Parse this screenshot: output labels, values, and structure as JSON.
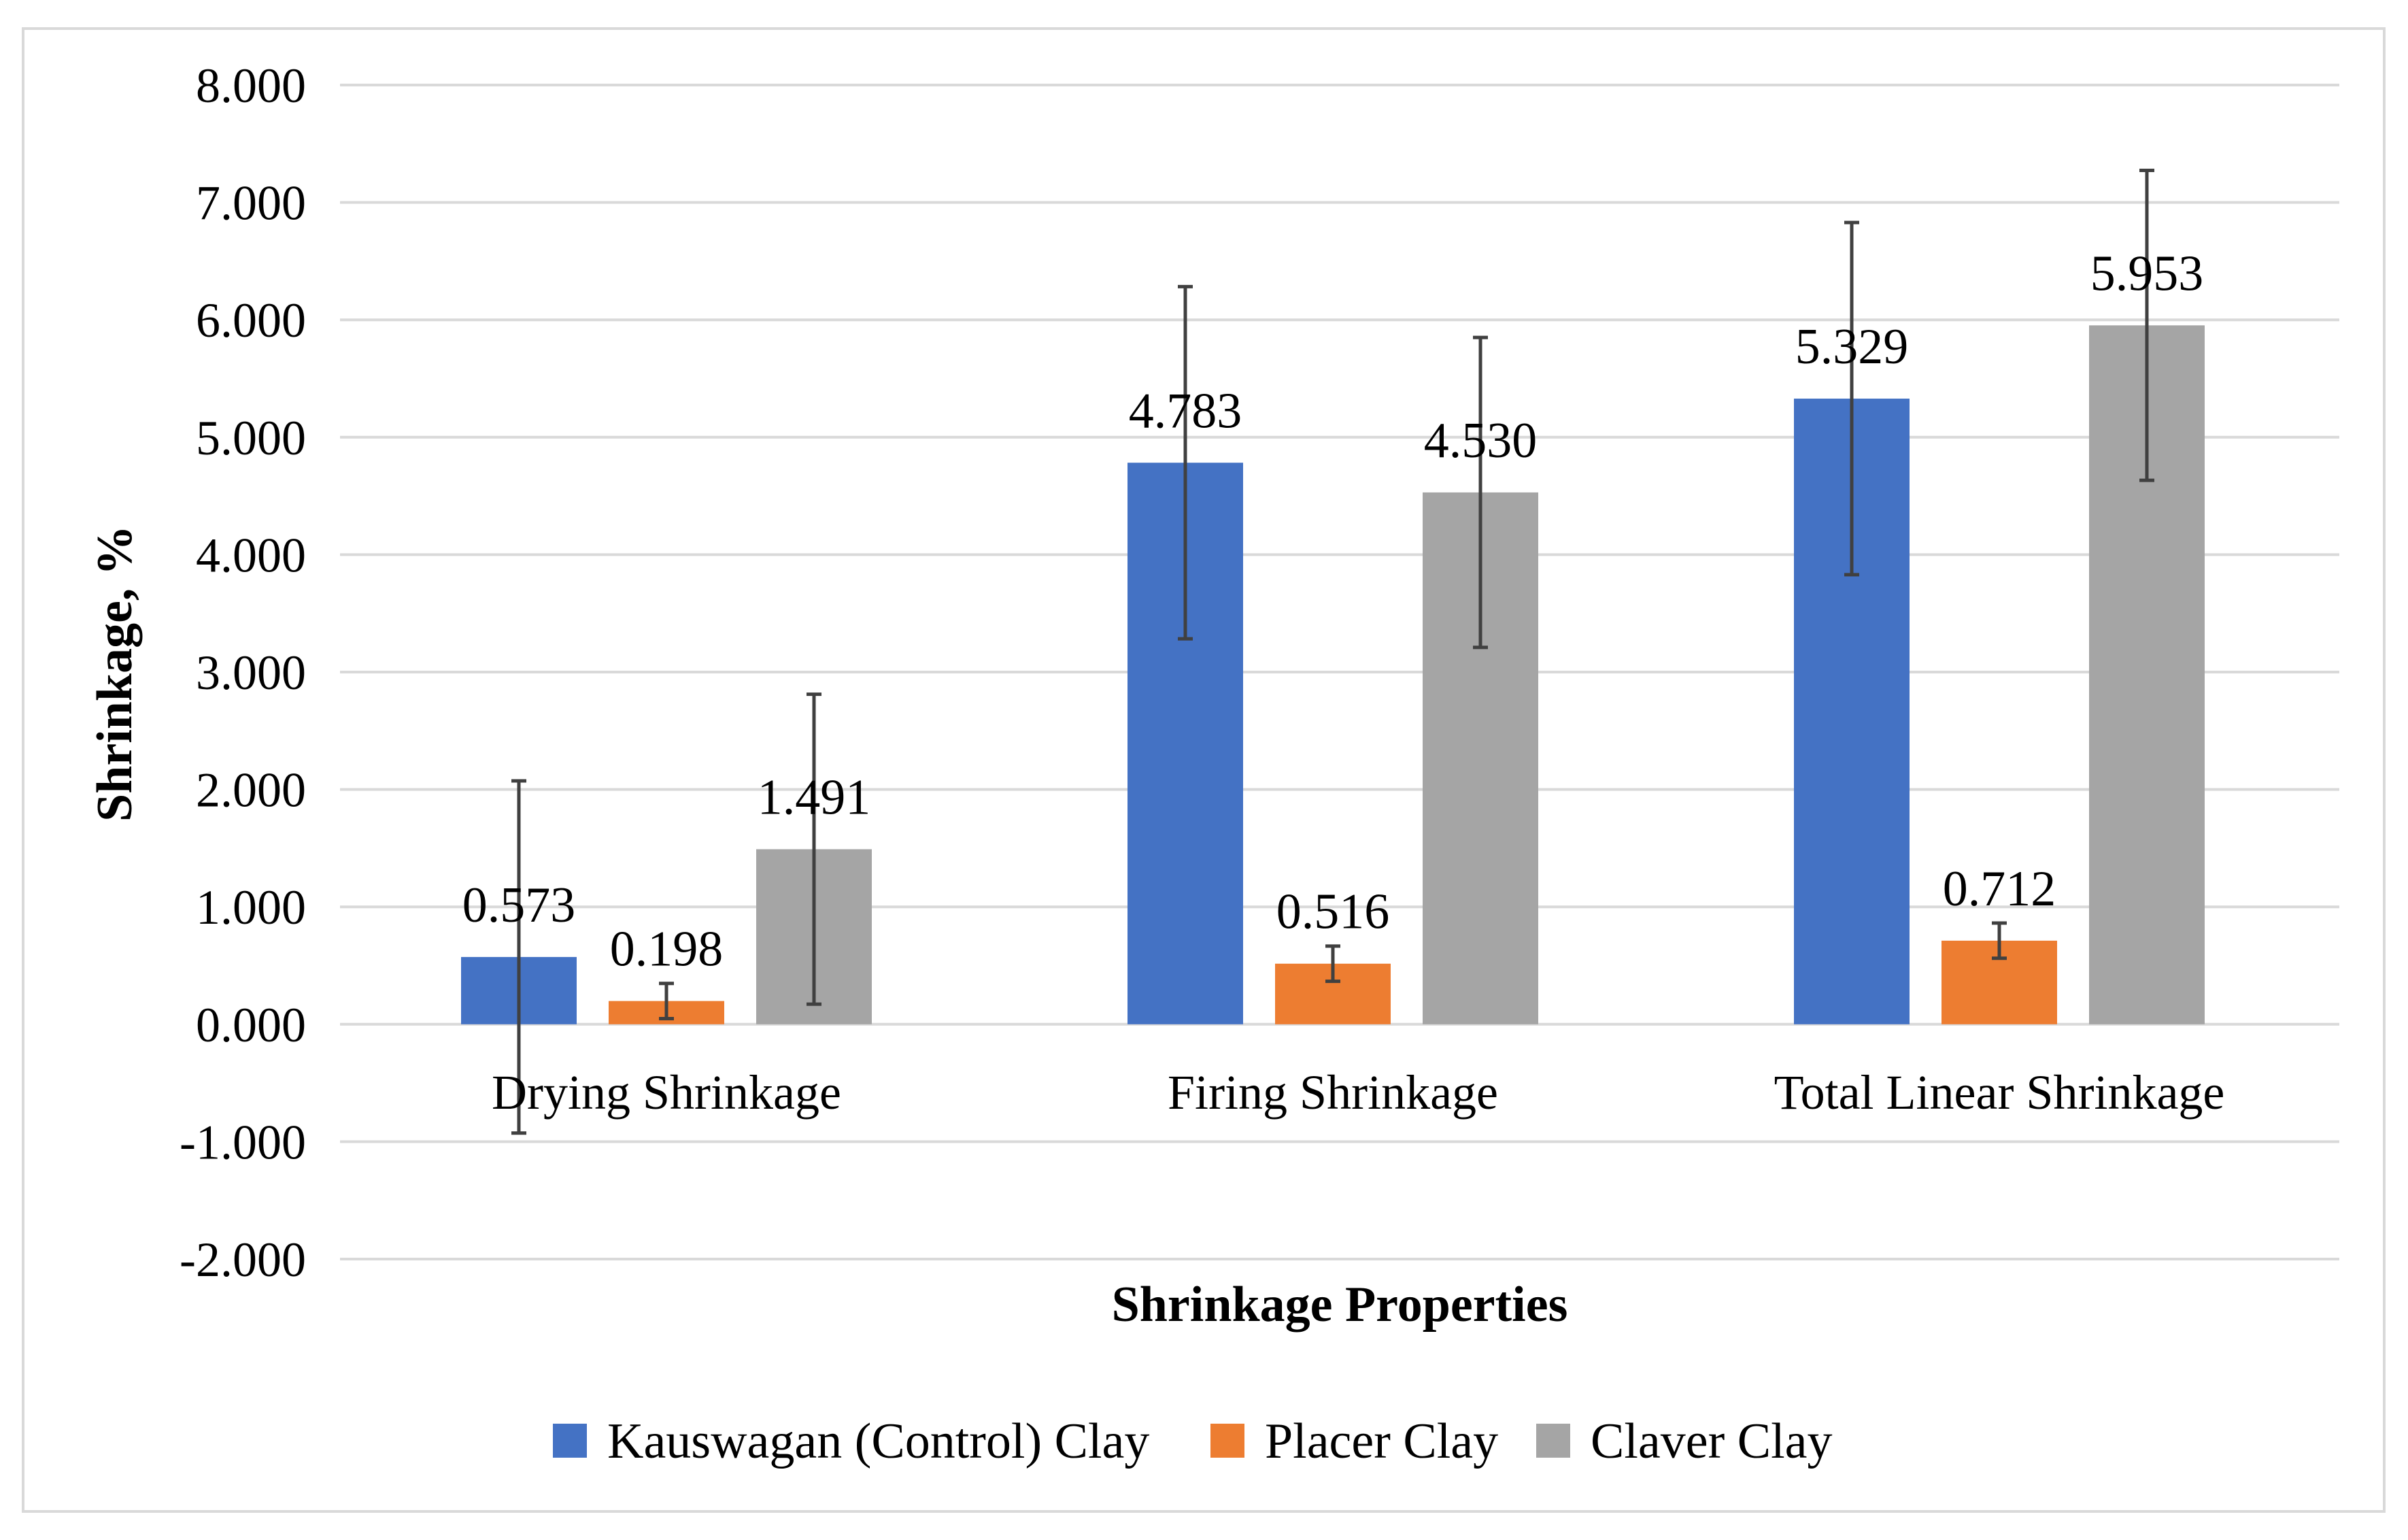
{
  "chart_data": {
    "type": "bar",
    "title": "",
    "xlabel": "Shrinkage Properties",
    "ylabel": "Shrinkage, %",
    "ylim": [
      -2,
      8
    ],
    "ytick_step": 1,
    "ytick_labels": [
      "-2.000",
      "-1.000",
      "0.000",
      "1.000",
      "2.000",
      "3.000",
      "4.000",
      "5.000",
      "6.000",
      "7.000",
      "8.000"
    ],
    "grid": true,
    "legend_position": "bottom",
    "categories": [
      "Drying Shrinkage",
      "Firing Shrinkage",
      "Total Linear Shrinkage"
    ],
    "series": [
      {
        "name": "Kauswagan (Control) Clay",
        "color": "#4472c4",
        "values": [
          0.573,
          4.783,
          5.329
        ],
        "labels": [
          "0.573",
          "4.783",
          "5.329"
        ],
        "error": [
          1.5,
          1.5,
          1.5
        ]
      },
      {
        "name": "Placer Clay",
        "color": "#ed7d31",
        "values": [
          0.198,
          0.516,
          0.712
        ],
        "labels": [
          "0.198",
          "0.516",
          "0.712"
        ],
        "error": [
          0.15,
          0.15,
          0.15
        ]
      },
      {
        "name": "Claver Clay",
        "color": "#a5a5a5",
        "values": [
          1.491,
          4.53,
          5.953
        ],
        "labels": [
          "1.491",
          "4.530",
          "5.953"
        ],
        "error": [
          1.32,
          1.32,
          1.32
        ]
      }
    ]
  }
}
